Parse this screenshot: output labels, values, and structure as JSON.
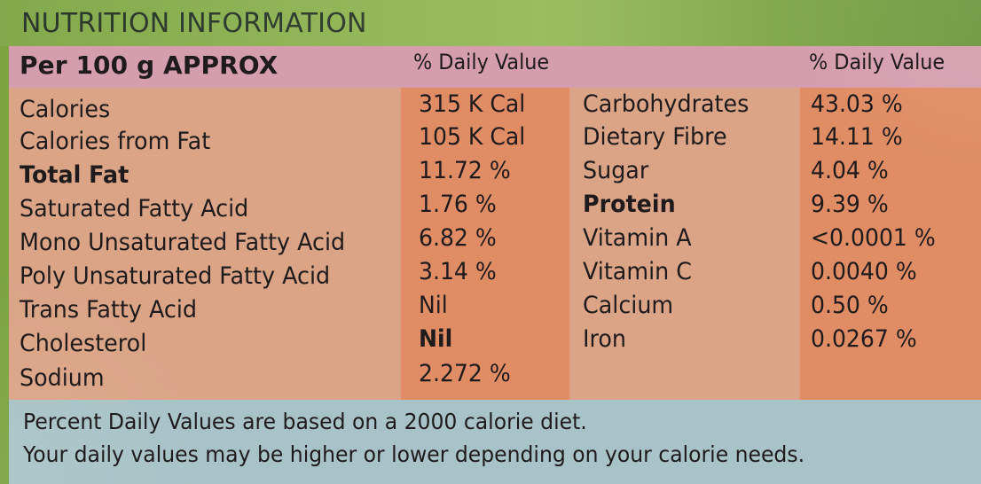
{
  "panel": {
    "title": "NUTRITION INFORMATION",
    "serving": "Per 100 g APPROX",
    "daily_value_header": "% Daily Value"
  },
  "colors": {
    "title_strip": "#7ba441",
    "header_row": "#d59eaf",
    "table_body": "#dba487",
    "value_band": "#e08c64",
    "footer": "#a8c3c7"
  },
  "left_items": [
    {
      "label": "Calories",
      "value": "315 K Cal",
      "emphasis": false
    },
    {
      "label": "Calories from Fat",
      "value": "105 K Cal",
      "emphasis": false
    },
    {
      "label": "Total Fat",
      "value": "11.72 %",
      "emphasis": true
    },
    {
      "label": "Saturated Fatty Acid",
      "value": "1.76 %",
      "emphasis": false
    },
    {
      "label": "Mono Unsaturated Fatty Acid",
      "value": "6.82 %",
      "emphasis": false
    },
    {
      "label": "Poly Unsaturated Fatty Acid",
      "value": "3.14 %",
      "emphasis": false
    },
    {
      "label": "Trans Fatty Acid",
      "value": "Nil",
      "emphasis": false
    },
    {
      "label": "Cholesterol",
      "value": "Nil",
      "emphasis": true
    },
    {
      "label": "Sodium",
      "value": "2.272 %",
      "emphasis": false
    }
  ],
  "right_items": [
    {
      "label": "Carbohydrates",
      "value": "43.03 %",
      "emphasis": true
    },
    {
      "label": "Dietary Fibre",
      "value": "14.11 %",
      "emphasis": false
    },
    {
      "label": "Sugar",
      "value": "4.04 %",
      "emphasis": false
    },
    {
      "label": "Protein",
      "value": "9.39 %",
      "emphasis": true
    },
    {
      "label": "Vitamin A",
      "value": "<0.0001 %",
      "emphasis": false
    },
    {
      "label": "Vitamin C",
      "value": "0.0040 %",
      "emphasis": false
    },
    {
      "label": "Calcium",
      "value": "0.50 %",
      "emphasis": false
    },
    {
      "label": "Iron",
      "value": "0.0267 %",
      "emphasis": false
    }
  ],
  "footer": {
    "line1": "Percent Daily Values are based on a 2000 calorie diet.",
    "line2": "Your daily values may be higher or lower depending on your calorie needs."
  }
}
